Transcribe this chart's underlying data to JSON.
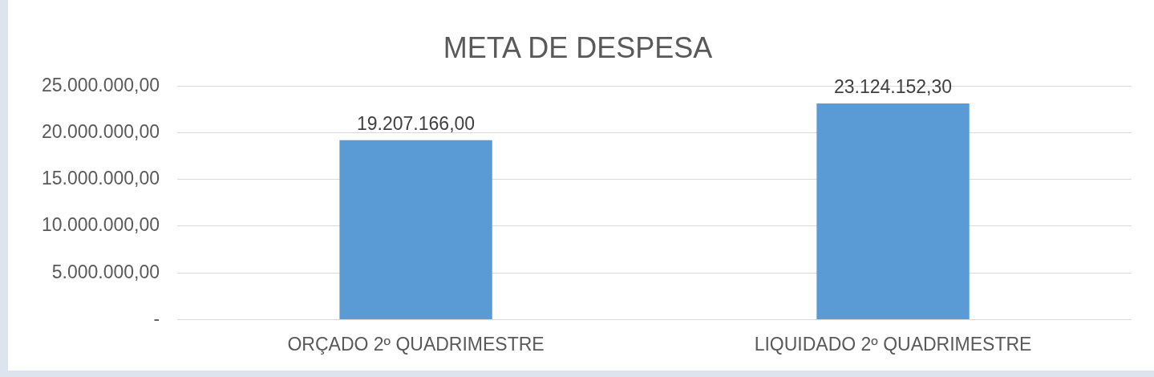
{
  "chart_data": {
    "type": "bar",
    "title": "META DE DESPESA",
    "categories": [
      "ORÇADO 2º QUADRIMESTRE",
      "LIQUIDADO 2º QUADRIMESTRE"
    ],
    "values": [
      19207166.0,
      23124152.3
    ],
    "value_labels": [
      "19.207.166,00",
      "23.124.152,30"
    ],
    "color": "#5b9bd5",
    "ylim": [
      0,
      25000000
    ],
    "yticks": [
      {
        "value": 0,
        "label": "-"
      },
      {
        "value": 5000000,
        "label": "5.000.000,00"
      },
      {
        "value": 10000000,
        "label": "10.000.000,00"
      },
      {
        "value": 15000000,
        "label": "15.000.000,00"
      },
      {
        "value": 20000000,
        "label": "20.000.000,00"
      },
      {
        "value": 25000000,
        "label": "25.000.000,00"
      }
    ],
    "grid": "y"
  }
}
